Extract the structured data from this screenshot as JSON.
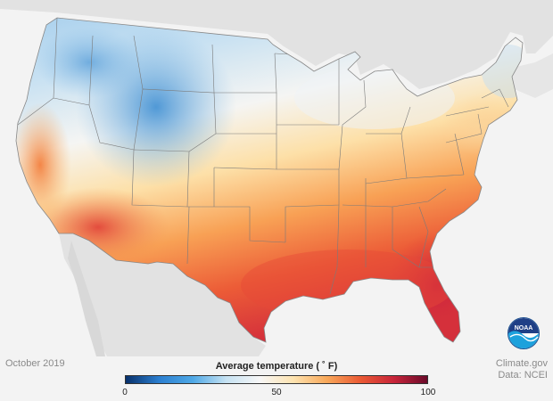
{
  "map": {
    "date_label": "October 2019",
    "credit": "Climate.gov",
    "data_source": "Data: NCEI",
    "legend": {
      "title": "Average temperature ( ˚ F)",
      "min_label": "0",
      "mid_label": "50",
      "max_label": "100",
      "min": 0,
      "max": 100,
      "colors": [
        "#08306b",
        "#2b7fd0",
        "#4ea8e6",
        "#c6e2f2",
        "#f7f7f7",
        "#fde3b0",
        "#f8a85a",
        "#ea5a34",
        "#c8253a",
        "#6b0a2a"
      ]
    },
    "logo_text": "NOAA",
    "colors": {
      "land_outside": "#e3e3e3",
      "ocean": "#f3f3f3",
      "cold": "#5fa9df",
      "cool": "#a9d0ee",
      "neutral": "#f4f4f2",
      "warm": "#fbc77f",
      "hot": "#ee6a3c",
      "hottest": "#d9353b",
      "borders": "#777777"
    }
  }
}
